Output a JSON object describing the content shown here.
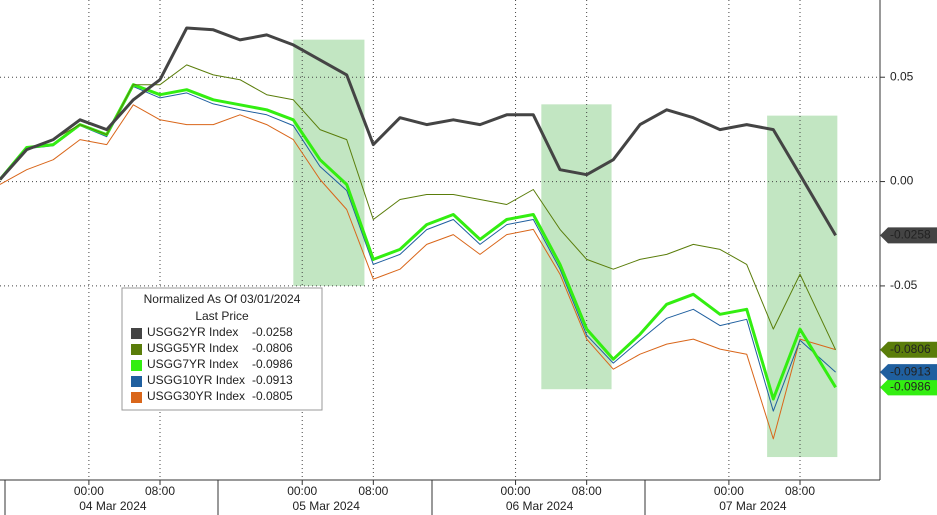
{
  "chart_data": {
    "type": "line",
    "legend": {
      "title": "Normalized As Of 03/01/2024",
      "subtitle": "Last Price"
    },
    "x": [
      -10,
      -7,
      -4,
      -1,
      2,
      5,
      8,
      11,
      14,
      17,
      20,
      23,
      26,
      29,
      32,
      35,
      38,
      41,
      44,
      47,
      50,
      53,
      56,
      59,
      62,
      65,
      68,
      71,
      74,
      77,
      80,
      84
    ],
    "xlim": [
      -10,
      89
    ],
    "xticks": [
      {
        "value": 0,
        "label": "00:00"
      },
      {
        "value": 8,
        "label": "08:00"
      },
      {
        "value": 24,
        "label": "00:00"
      },
      {
        "value": 32,
        "label": "08:00"
      },
      {
        "value": 48,
        "label": "00:00"
      },
      {
        "value": 56,
        "label": "08:00"
      },
      {
        "value": 72,
        "label": "00:00"
      },
      {
        "value": 80,
        "label": "08:00"
      }
    ],
    "x_date_labels": [
      {
        "value": 0,
        "label": "04 Mar 2024"
      },
      {
        "value": 24,
        "label": "05 Mar 2024"
      },
      {
        "value": 48,
        "label": "06 Mar 2024"
      },
      {
        "value": 72,
        "label": "07 Mar 2024"
      }
    ],
    "ylim": [
      -0.143,
      0.087
    ],
    "yticks": [
      0.05,
      {
        "value": 0,
        "label": "0.00"
      },
      -0.05
    ],
    "grid": true,
    "highlights": [
      {
        "x0": 23,
        "x1": 31,
        "y0": 0.068,
        "y1": -0.05
      },
      {
        "x0": 50.9,
        "x1": 58.8,
        "y0": 0.037,
        "y1": -0.0995
      },
      {
        "x0": 76.3,
        "x1": 84.2,
        "y0": 0.0316,
        "y1": -0.132
      }
    ],
    "series": [
      {
        "name": "USGG2YR Index",
        "color": "#444444",
        "width": 3,
        "show_tag": true,
        "values": [
          0.001,
          0.0153,
          0.0201,
          0.0296,
          0.0249,
          0.0392,
          0.0488,
          0.0736,
          0.0727,
          0.0679,
          0.0703,
          0.0655,
          0.0583,
          0.0511,
          0.0177,
          0.0306,
          0.0273,
          0.0296,
          0.0273,
          0.032,
          0.032,
          0.0057,
          0.0033,
          0.0105,
          0.0273,
          0.0344,
          0.0306,
          0.0249,
          0.0273,
          0.0249,
          0.0033,
          -0.0258
        ]
      },
      {
        "name": "USGG5YR Index",
        "color": "#5a7d0a",
        "width": 1,
        "show_tag": true,
        "values": [
          0.001,
          0.0153,
          0.0201,
          0.0273,
          0.0225,
          0.0464,
          0.0464,
          0.0559,
          0.0511,
          0.0488,
          0.0416,
          0.0392,
          0.0249,
          0.0201,
          -0.0182,
          -0.0086,
          -0.0062,
          -0.0062,
          -0.0086,
          -0.011,
          -0.0038,
          -0.0229,
          -0.0373,
          -0.042,
          -0.0373,
          -0.0349,
          -0.0301,
          -0.0325,
          -0.0397,
          -0.0707,
          -0.0444,
          -0.0806
        ]
      },
      {
        "name": "USGG7YR Index",
        "color": "#33ee11",
        "width": 3,
        "show_tag": true,
        "values": [
          0.001,
          0.0163,
          0.0177,
          0.0273,
          0.0225,
          0.0464,
          0.0416,
          0.044,
          0.0392,
          0.0368,
          0.0344,
          0.0296,
          0.0105,
          -0.0014,
          -0.0373,
          -0.0325,
          -0.0206,
          -0.0158,
          -0.0277,
          -0.0182,
          -0.0158,
          -0.0397,
          -0.0707,
          -0.0851,
          -0.0732,
          -0.0588,
          -0.054,
          -0.0636,
          -0.0612,
          -0.1042,
          -0.0707,
          -0.0986
        ]
      },
      {
        "name": "USGG10YR Index",
        "color": "#1f5f9f",
        "width": 1,
        "show_tag": true,
        "values": [
          0.001,
          0.0158,
          0.0172,
          0.0268,
          0.0215,
          0.0455,
          0.0401,
          0.0425,
          0.0372,
          0.0344,
          0.032,
          0.0268,
          0.0072,
          -0.0043,
          -0.0397,
          -0.0349,
          -0.023,
          -0.0182,
          -0.0301,
          -0.0206,
          -0.0182,
          -0.042,
          -0.0736,
          -0.087,
          -0.076,
          -0.0655,
          -0.0612,
          -0.069,
          -0.066,
          -0.11,
          -0.076,
          -0.0913
        ]
      },
      {
        "name": "USGG30YR Index",
        "color": "#d9661a",
        "width": 1,
        "show_tag": false,
        "values": [
          -0.0014,
          0.0057,
          0.0105,
          0.0201,
          0.0177,
          0.0368,
          0.0296,
          0.0273,
          0.0273,
          0.032,
          0.0273,
          0.0201,
          0.001,
          -0.0134,
          -0.0468,
          -0.042,
          -0.0301,
          -0.0254,
          -0.0349,
          -0.0254,
          -0.0229,
          -0.0444,
          -0.0755,
          -0.0899,
          -0.0827,
          -0.0779,
          -0.0755,
          -0.0803,
          -0.0827,
          -0.1233,
          -0.0755,
          -0.0805
        ]
      }
    ]
  }
}
